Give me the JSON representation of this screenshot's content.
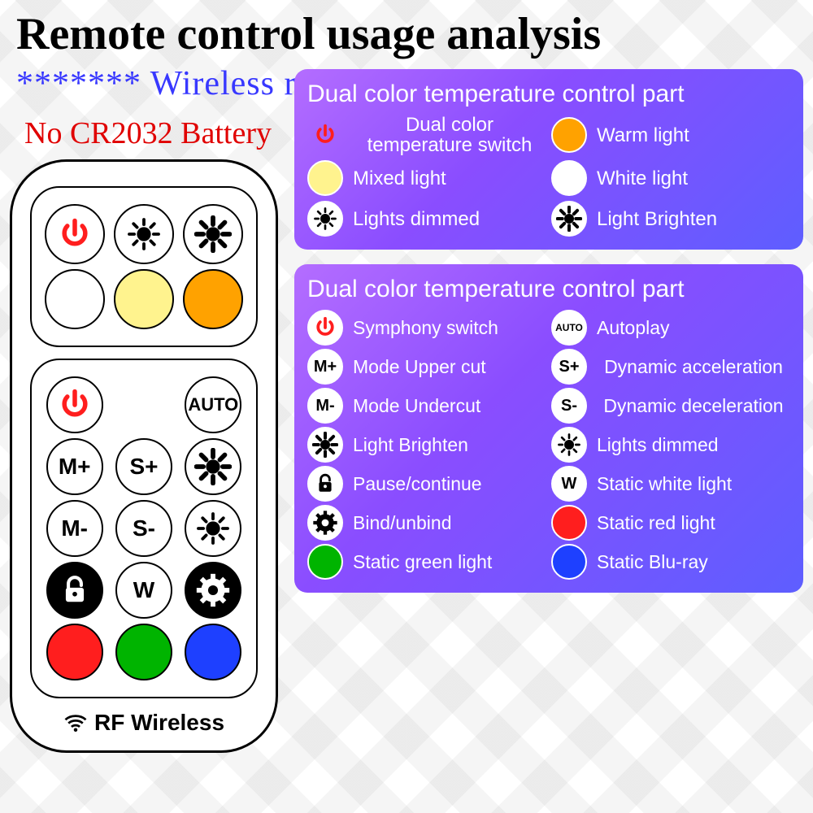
{
  "title": "Remote control usage analysis",
  "subtitle": "******* Wireless remote control *******",
  "warning": "No CR2032 Battery",
  "rf_label": "RF Wireless",
  "colors": {
    "title": "#000000",
    "subtitle": "#3838ff",
    "warning": "#e00000",
    "panel1_bg": "linear-gradient(135deg,#b46dff 0%,#8a4dff 40%,#5e5eff 100%)",
    "panel2_bg": "linear-gradient(135deg,#b46dff 0%,#8a4dff 40%,#5e5eff 100%)",
    "orange": "#ffa200",
    "pale_yellow": "#fff38e",
    "white": "#ffffff",
    "red": "#ff1e1e",
    "green": "#00b400",
    "blue": "#1e40ff",
    "black": "#000000"
  },
  "remote": {
    "group1": {
      "row1": [
        {
          "type": "power",
          "color": "#ff1e1e"
        },
        {
          "type": "sun-dim",
          "color": "#000"
        },
        {
          "type": "sun-bright",
          "color": "#000"
        }
      ],
      "row2": [
        {
          "type": "circle",
          "fill": "#ffffff"
        },
        {
          "type": "circle",
          "fill": "#fff38e"
        },
        {
          "type": "circle",
          "fill": "#ffa200"
        }
      ]
    },
    "group2": {
      "rows": [
        [
          {
            "type": "power",
            "color": "#ff1e1e"
          },
          {
            "type": "blank"
          },
          {
            "type": "text",
            "label": "AUTO",
            "fs": 22
          }
        ],
        [
          {
            "type": "text",
            "label": "M+"
          },
          {
            "type": "text",
            "label": "S+"
          },
          {
            "type": "sun-bright",
            "color": "#000"
          }
        ],
        [
          {
            "type": "text",
            "label": "M-"
          },
          {
            "type": "text",
            "label": "S-"
          },
          {
            "type": "sun-dim",
            "color": "#000"
          }
        ],
        [
          {
            "type": "lock",
            "fill": "#000",
            "icon": "#fff"
          },
          {
            "type": "text",
            "label": "W"
          },
          {
            "type": "gear",
            "fill": "#000",
            "icon": "#fff"
          }
        ],
        [
          {
            "type": "circle",
            "fill": "#ff1e1e"
          },
          {
            "type": "circle",
            "fill": "#00b400"
          },
          {
            "type": "circle",
            "fill": "#1e40ff"
          }
        ]
      ]
    }
  },
  "panel1": {
    "title": "Dual color temperature control part",
    "items": [
      {
        "icon": "power",
        "icon_color": "#ff1e1e",
        "bg": "none",
        "label": "Dual color temperature switch",
        "center": true
      },
      {
        "icon": "circle",
        "fill": "#ffa200",
        "label": "Warm light"
      },
      {
        "icon": "circle",
        "fill": "#fff38e",
        "label": "Mixed light"
      },
      {
        "icon": "circle",
        "fill": "#ffffff",
        "label": "White light"
      },
      {
        "icon": "sun-dim",
        "bg": "#ffffff",
        "icon_color": "#000",
        "label": "Lights dimmed"
      },
      {
        "icon": "sun-bright",
        "bg": "#ffffff",
        "icon_color": "#000",
        "label": "Light Brighten"
      }
    ]
  },
  "panel2": {
    "title": "Dual color temperature control part",
    "items": [
      {
        "icon": "power",
        "icon_color": "#ff1e1e",
        "bg": "#ffffff",
        "label": "Symphony switch"
      },
      {
        "icon": "text",
        "text": "AUTO",
        "bg": "#ffffff",
        "fs": 12,
        "label": "Autoplay"
      },
      {
        "icon": "text",
        "text": "M+",
        "bg": "#ffffff",
        "label": "Mode Upper cut"
      },
      {
        "icon": "text",
        "text": "S+",
        "bg": "#ffffff",
        "label": "Dynamic acceleration",
        "center": true
      },
      {
        "icon": "text",
        "text": "M-",
        "bg": "#ffffff",
        "label": "Mode Undercut"
      },
      {
        "icon": "text",
        "text": "S-",
        "bg": "#ffffff",
        "label": "Dynamic deceleration",
        "center": true
      },
      {
        "icon": "sun-bright",
        "bg": "#ffffff",
        "icon_color": "#000",
        "label": "Light Brighten"
      },
      {
        "icon": "sun-dim",
        "bg": "#ffffff",
        "icon_color": "#000",
        "label": "Lights dimmed"
      },
      {
        "icon": "lock",
        "bg": "#ffffff",
        "icon_color": "#000",
        "label": "Pause/continue"
      },
      {
        "icon": "text",
        "text": "W",
        "bg": "#ffffff",
        "label": "Static white light"
      },
      {
        "icon": "gear",
        "bg": "#ffffff",
        "icon_color": "#000",
        "label": "Bind/unbind"
      },
      {
        "icon": "circle",
        "fill": "#ff1e1e",
        "label": "Static red light"
      },
      {
        "icon": "circle",
        "fill": "#00b400",
        "label": "Static green light"
      },
      {
        "icon": "circle",
        "fill": "#1e40ff",
        "label": "Static Blu-ray"
      }
    ]
  }
}
